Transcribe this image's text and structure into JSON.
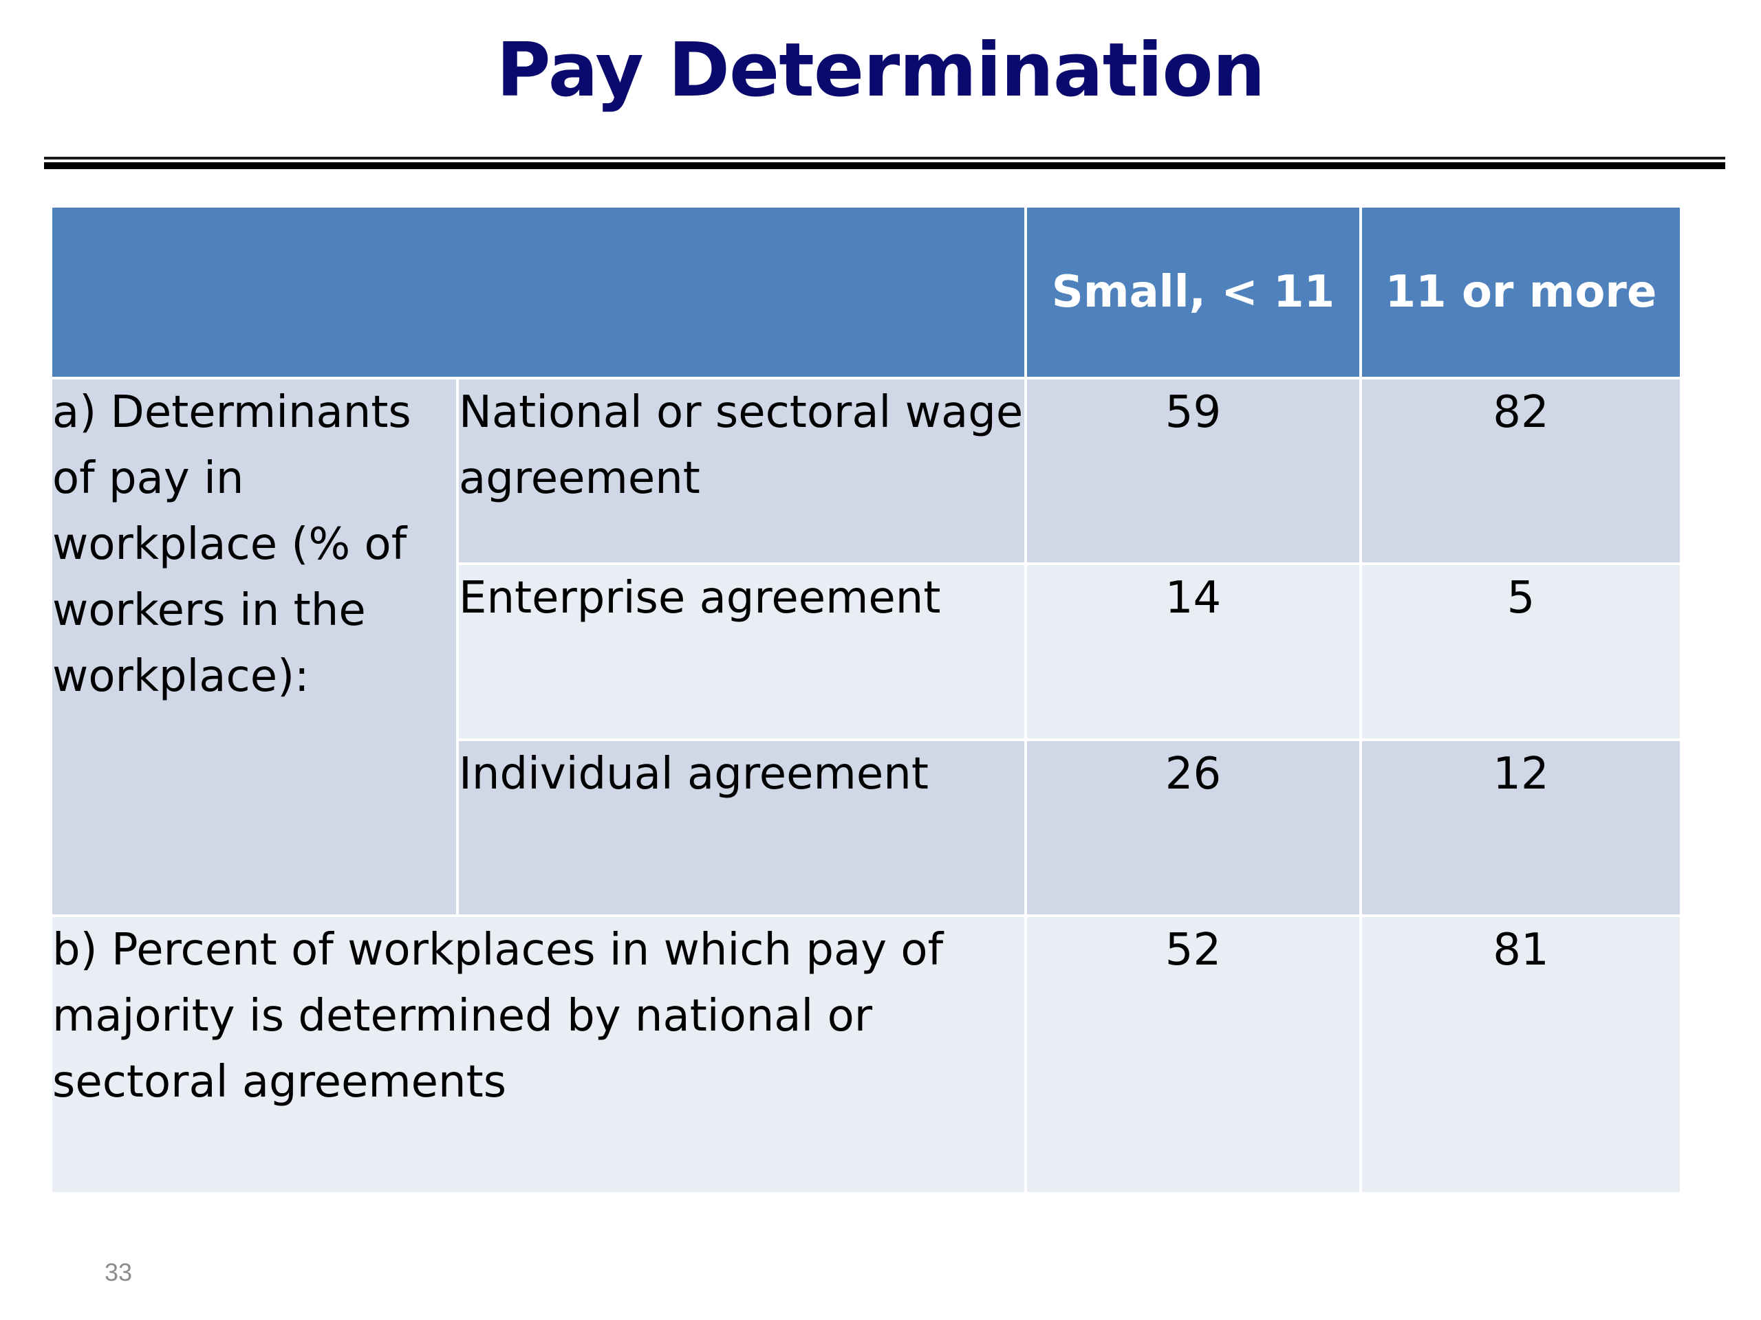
{
  "slide": {
    "title": "Pay Determination",
    "page_number": "33"
  },
  "table": {
    "headers": [
      "",
      "",
      "Small, < 11",
      "11 or more"
    ],
    "section_a": {
      "label": "a) Determinants of pay in workplace (% of workers in the workplace):",
      "rows": [
        {
          "label": "National or sectoral wage agreement",
          "small": "59",
          "large": "82"
        },
        {
          "label": "Enterprise agreement",
          "small": "14",
          "large": "5"
        },
        {
          "label": "Individual agreement",
          "small": "26",
          "large": "12"
        }
      ]
    },
    "section_b": {
      "label": "b) Percent of workplaces in which pay of majority is determined by national or sectoral agreements",
      "small": "52",
      "large": "81"
    }
  },
  "colors": {
    "title": "#0a0a6e",
    "header_fill": "#4f81bd",
    "row_dark": "#d0d8e8",
    "row_light": "#e9edf4"
  }
}
